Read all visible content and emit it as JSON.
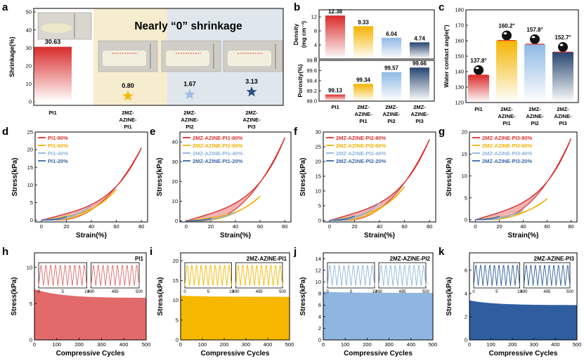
{
  "panels": {
    "a": "a",
    "b": "b",
    "c": "c",
    "d": "d",
    "e": "e",
    "f": "f",
    "g": "g",
    "h": "h",
    "i": "i",
    "j": "j",
    "k": "k"
  },
  "chart_data": [
    {
      "id": "a",
      "type": "bar",
      "title": "Nearly “0” shrinkage",
      "ylabel": "Shrinkage(%)",
      "categories": [
        "PI1",
        "2MZ-AZINE-PI1",
        "2MZ-AZINE-PI2",
        "2MZ-AZINE-PI3"
      ],
      "values": [
        30.63,
        0.8,
        1.67,
        3.13
      ],
      "value_labels": [
        "30.63",
        "0.80",
        "1.67",
        "3.13"
      ],
      "ylim": [
        -2,
        52
      ],
      "yticks": [
        0,
        10,
        20,
        30,
        40,
        50
      ],
      "colors": [
        "#e23b3b",
        "#f6b800",
        "#9bbfe3",
        "#2c4f80"
      ]
    },
    {
      "id": "b-top",
      "type": "bar",
      "ylabel": "Density (mg cm⁻³)",
      "categories": [
        "PI1",
        "2MZ-AZINE-PI1",
        "2MZ-AZINE-PI2",
        "2MZ-AZINE-PI3"
      ],
      "values": [
        12.38,
        9.33,
        6.04,
        4.74
      ],
      "value_labels": [
        "12.38",
        "9.33",
        "6.04",
        "4.74"
      ],
      "ylim": [
        0,
        14
      ],
      "yticks": [
        0,
        4,
        8,
        12
      ]
    },
    {
      "id": "b-bottom",
      "type": "bar",
      "ylabel": "Porosity(%)",
      "categories": [
        "PI1",
        "2MZ-AZINE-PI1",
        "2MZ-AZINE-PI2",
        "2MZ-AZINE-PI3"
      ],
      "values": [
        99.13,
        99.34,
        99.57,
        99.66
      ],
      "value_labels": [
        "99.13",
        "99.34",
        "99.57",
        "99.66"
      ],
      "ylim": [
        99.0,
        99.8
      ],
      "yticks": [
        99.0,
        99.2,
        99.4,
        99.6,
        99.8
      ],
      "ytick_labels": [
        "99.0",
        "99.2",
        "99.4",
        "99.6",
        "99.8"
      ]
    },
    {
      "id": "c",
      "type": "bar",
      "ylabel": "Water contact angle(°)",
      "categories": [
        "PI1",
        "2MZ-AZINE-PI1",
        "2MZ-AZINE-PI2",
        "2MZ-AZINE-PI3"
      ],
      "values": [
        137.8,
        160.2,
        157.8,
        152.7
      ],
      "value_labels": [
        "137.8°",
        "160.2°",
        "157.8°",
        "152.7°"
      ],
      "ylim": [
        120,
        180
      ],
      "yticks": [
        120,
        130,
        140,
        150,
        160,
        170,
        180
      ]
    },
    {
      "id": "d",
      "type": "line",
      "xlabel": "Strain(%)",
      "ylabel": "Stress(kPa)",
      "xlim": [
        -5,
        85
      ],
      "ylim": [
        -0.5,
        25
      ],
      "xticks": [
        0,
        20,
        40,
        60,
        80
      ],
      "yticks": [
        0,
        5,
        10,
        15,
        20,
        25
      ],
      "color": "#d93030",
      "legend": [
        "PI1-80%",
        "PI1-60%",
        "PI1-40%",
        "PI1-20%"
      ],
      "series": [
        {
          "strain": 80,
          "peak": 20.5
        },
        {
          "strain": 60,
          "peak": 8.8
        },
        {
          "strain": 40,
          "peak": 4.2
        },
        {
          "strain": 20,
          "peak": 1.0
        }
      ]
    },
    {
      "id": "e",
      "type": "line",
      "xlabel": "Strain(%)",
      "ylabel": "Stress(kPa)",
      "xlim": [
        -5,
        85
      ],
      "ylim": [
        -0.5,
        45
      ],
      "xticks": [
        0,
        20,
        40,
        60,
        80
      ],
      "yticks": [
        0,
        10,
        20,
        30,
        40
      ],
      "color": "#d93030",
      "legend": [
        "2MZ-AZINE-PI1-80%",
        "2MZ-AZINE-PI1-60%",
        "2MZ-AZINE-PI1-40%",
        "2MZ-AZINE-PI1-20%"
      ],
      "series": [
        {
          "strain": 80,
          "peak": 42.0
        },
        {
          "strain": 60,
          "peak": 12.5
        },
        {
          "strain": 40,
          "peak": 4.5
        },
        {
          "strain": 20,
          "peak": 1.2
        }
      ]
    },
    {
      "id": "f",
      "type": "line",
      "xlabel": "Strain(%)",
      "ylabel": "Stress(kPa)",
      "xlim": [
        -5,
        85
      ],
      "ylim": [
        -0.5,
        30
      ],
      "xticks": [
        0,
        20,
        40,
        60,
        80
      ],
      "yticks": [
        0,
        5,
        10,
        15,
        20,
        25,
        30
      ],
      "color": "#d93030",
      "legend": [
        "2MZ-AZINE-PI2-80%",
        "2MZ-AZINE-PI2-60%",
        "2MZ-AZINE-PI2-40%",
        "2MZ-AZINE-PI2-20%"
      ],
      "series": [
        {
          "strain": 80,
          "peak": 27.5
        },
        {
          "strain": 60,
          "peak": 11.5
        },
        {
          "strain": 40,
          "peak": 6.0
        },
        {
          "strain": 20,
          "peak": 1.5
        }
      ]
    },
    {
      "id": "g",
      "type": "line",
      "xlabel": "Strain(%)",
      "ylabel": "Stress(kPa)",
      "xlim": [
        -5,
        85
      ],
      "ylim": [
        -0.5,
        20
      ],
      "xticks": [
        0,
        20,
        40,
        60,
        80
      ],
      "yticks": [
        0,
        5,
        10,
        15,
        20
      ],
      "color": "#d93030",
      "legend": [
        "2MZ-AZINE-PI3-80%",
        "2MZ-AZINE-PI3-60%",
        "2MZ-AZINE-PI3-40%",
        "2MZ-AZINE-PI3-20%"
      ],
      "series": [
        {
          "strain": 80,
          "peak": 18.5
        },
        {
          "strain": 60,
          "peak": 4.8
        },
        {
          "strain": 40,
          "peak": 2.2
        },
        {
          "strain": 20,
          "peak": 0.8
        }
      ]
    },
    {
      "id": "h",
      "type": "area",
      "title": "PI1",
      "xlabel": "Compressive Cycles",
      "ylabel": "Stress(kPa)",
      "xlim": [
        0,
        500
      ],
      "ylim": [
        0,
        12
      ],
      "xticks": [
        0,
        100,
        200,
        300,
        400,
        500
      ],
      "yticks": [
        0,
        5,
        10
      ],
      "color": "#e26a6a",
      "start": 7.0,
      "end": 5.8,
      "inset_left_ticks": [
        0,
        5,
        10
      ],
      "inset_right_ticks": [
        490,
        495,
        500
      ]
    },
    {
      "id": "i",
      "type": "area",
      "title": "2MZ-AZINE-PI1",
      "xlabel": "Compressive Cycles",
      "ylabel": "Stress(kPa)",
      "xlim": [
        0,
        500
      ],
      "ylim": [
        0,
        22
      ],
      "xticks": [
        0,
        100,
        200,
        300,
        400,
        500
      ],
      "yticks": [
        0,
        5,
        10,
        15,
        20
      ],
      "color": "#f6b800",
      "start": 11.2,
      "end": 10.9,
      "inset_left_ticks": [
        0,
        5,
        10
      ],
      "inset_right_ticks": [
        490,
        495,
        500
      ]
    },
    {
      "id": "j",
      "type": "area",
      "title": "2MZ-AZINE-PI2",
      "xlabel": "Compressive Cycles",
      "ylabel": "Stress(kPa)",
      "xlim": [
        0,
        500
      ],
      "ylim": [
        0,
        15
      ],
      "xticks": [
        0,
        100,
        200,
        300,
        400,
        500
      ],
      "yticks": [
        0,
        2,
        4,
        6,
        8,
        10,
        12,
        14
      ],
      "color": "#8fb6e0",
      "start": 8.3,
      "end": 8.1,
      "inset_left_ticks": [
        0,
        5,
        10
      ],
      "inset_right_ticks": [
        490,
        495,
        500
      ]
    },
    {
      "id": "k",
      "type": "area",
      "title": "2MZ-AZINE-PI3",
      "xlabel": "Compressive Cycles",
      "ylabel": "Stress(kPa)",
      "xlim": [
        0,
        500
      ],
      "ylim": [
        0,
        7.5
      ],
      "xticks": [
        0,
        100,
        200,
        300,
        400,
        500
      ],
      "yticks": [
        0,
        2,
        4,
        6
      ],
      "color": "#2f5ea0",
      "start": 3.4,
      "end": 3.0,
      "inset_left_ticks": [
        0,
        5,
        10
      ],
      "inset_right_ticks": [
        490,
        495,
        500
      ]
    }
  ]
}
